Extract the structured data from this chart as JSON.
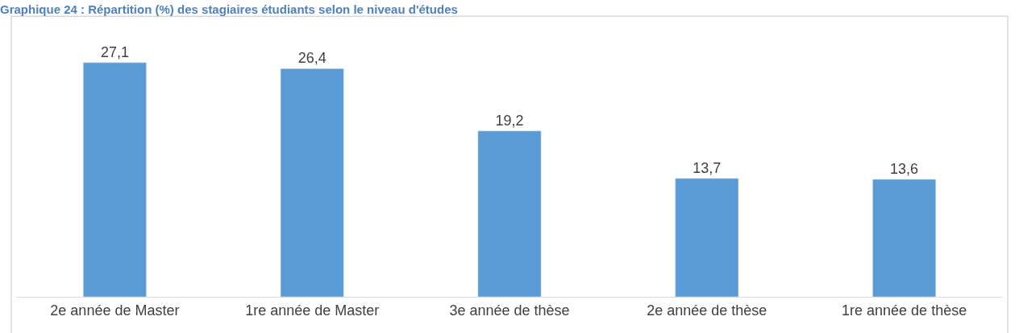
{
  "chart_data": {
    "type": "bar",
    "title": "Graphique 24 : Répartition (%) des stagiaires étudiants selon le niveau d'études",
    "categories": [
      "2e année de Master",
      "1re année de Master",
      "3e année de thèse",
      "2e année de thèse",
      "1re année de thèse"
    ],
    "values": [
      27.1,
      26.4,
      19.2,
      13.7,
      13.6
    ],
    "color": "#5b9bd5",
    "value_labels": [
      "27,1",
      "26,4",
      "19,2",
      "13,7",
      "13,6"
    ]
  }
}
